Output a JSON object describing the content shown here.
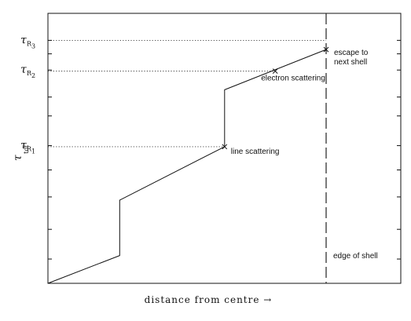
{
  "chart_data": {
    "type": "line",
    "title": "",
    "xlabel": "distance from centre  →",
    "ylabel": {
      "symbol": "τ",
      "subscript": "tot"
    },
    "xlim": [
      0,
      1
    ],
    "ylim": [
      0,
      1
    ],
    "grid": false,
    "ytick_labels": [
      {
        "symbol": "τ",
        "subscript": "R",
        "index": "3",
        "value": 0.9
      },
      {
        "symbol": "τ",
        "subscript": "R",
        "index": "2",
        "value": 0.79
      },
      {
        "symbol": "τ",
        "subscript": "R",
        "index": "1",
        "value": 0.51
      }
    ],
    "minor_yticks": [
      0.09,
      0.2,
      0.32,
      0.42,
      0.62,
      0.69,
      0.85
    ],
    "path": {
      "x": [
        0.0,
        0.258,
        0.258,
        0.635,
        0.635,
        1.0
      ],
      "y": [
        0.0,
        0.103,
        0.308,
        0.506,
        0.717,
        0.866
      ]
    },
    "events": [
      {
        "label": "line scattering",
        "x": 0.635,
        "y": 0.506
      },
      {
        "label": "electron scattering",
        "x": 0.817,
        "y": 0.786
      },
      {
        "label": "escape to\nnext shell",
        "x": 1.0,
        "y": 0.866
      }
    ],
    "reference_lines": [
      {
        "y": 0.9,
        "to_x": 1.0
      },
      {
        "y": 0.786,
        "to_x": 0.817
      },
      {
        "y": 0.506,
        "to_x": 0.635
      }
    ],
    "shell_edge": {
      "x": 1.0,
      "label": "edge of shell"
    }
  }
}
